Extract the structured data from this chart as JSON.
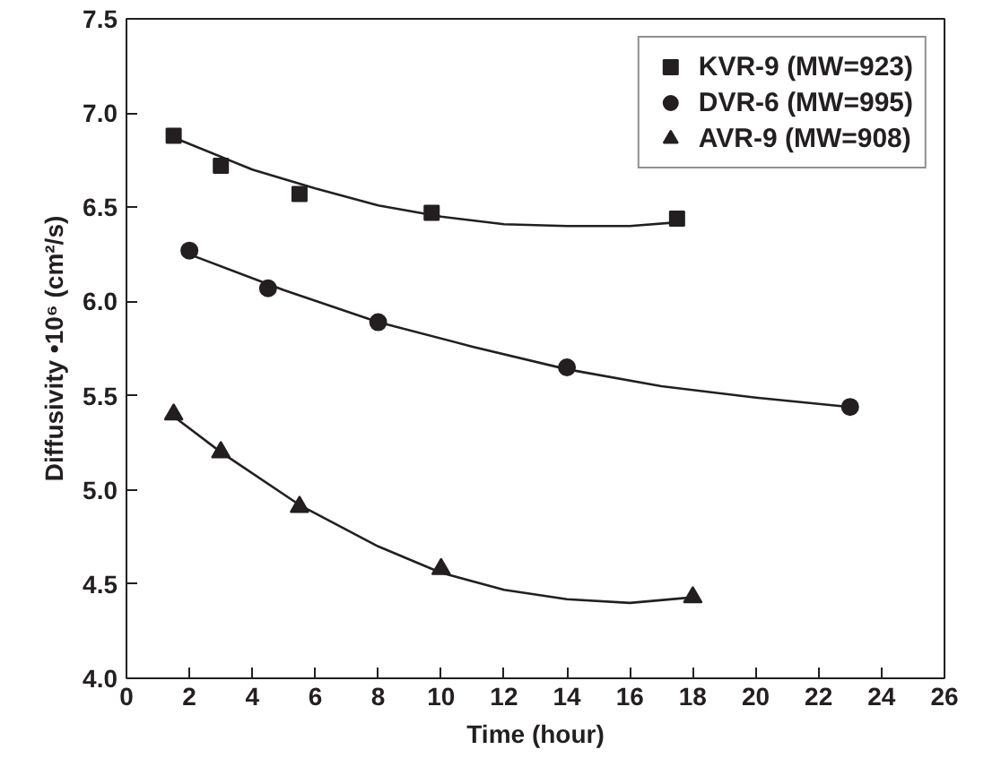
{
  "chart_data": {
    "type": "scatter",
    "xlabel": "Time (hour)",
    "ylabel": "Diffusivity •10⁶ (cm²/s)",
    "xlim": [
      0,
      26
    ],
    "xticks": [
      0,
      2,
      4,
      6,
      8,
      10,
      12,
      14,
      16,
      18,
      20,
      22,
      24,
      26
    ],
    "ylim": [
      4.0,
      7.5
    ],
    "yticks": [
      {
        "value": 4.0,
        "label": "4.0"
      },
      {
        "value": 4.5,
        "label": "4.5"
      },
      {
        "value": 5.0,
        "label": "5.0"
      },
      {
        "value": 5.5,
        "label": "5.5"
      },
      {
        "value": 6.0,
        "label": "6.0"
      },
      {
        "value": 6.5,
        "label": "6.5"
      },
      {
        "value": 7.0,
        "label": "7.0"
      },
      {
        "value": 7.5,
        "label": "7.5"
      }
    ],
    "grid": false,
    "legend": "top right",
    "series": [
      {
        "name": "KVR-9 (MW=923)",
        "marker": "square",
        "color": "#231f20",
        "x": [
          1.5,
          3,
          5.5,
          9.7,
          17.5
        ],
        "values": [
          6.88,
          6.72,
          6.57,
          6.47,
          6.44
        ]
      },
      {
        "name": "DVR-6 (MW=995)",
        "marker": "circle",
        "color": "#231f20",
        "x": [
          2,
          4.5,
          8,
          14,
          23
        ],
        "values": [
          6.27,
          6.07,
          5.89,
          5.65,
          5.44
        ]
      },
      {
        "name": "AVR-9 (MW=908)",
        "marker": "triangle",
        "color": "#231f20",
        "x": [
          1.5,
          3,
          5.5,
          10,
          18
        ],
        "values": [
          5.4,
          5.2,
          4.91,
          4.58,
          4.43
        ]
      },
      {
        "type": "line",
        "marker": "none",
        "line_style": "solid",
        "color": "#231f20",
        "x": [
          1.5,
          4,
          6,
          8,
          10,
          12,
          14,
          16,
          17.5
        ],
        "values": [
          6.87,
          6.7,
          6.6,
          6.51,
          6.45,
          6.41,
          6.4,
          6.4,
          6.42
        ]
      },
      {
        "type": "line",
        "marker": "none",
        "line_style": "solid",
        "color": "#231f20",
        "x": [
          2,
          5,
          8,
          11,
          14,
          17,
          20,
          23
        ],
        "values": [
          6.25,
          6.06,
          5.89,
          5.76,
          5.64,
          5.55,
          5.49,
          5.44
        ]
      },
      {
        "type": "line",
        "marker": "none",
        "line_style": "solid",
        "color": "#231f20",
        "x": [
          1.5,
          3,
          5.5,
          8,
          10,
          12,
          14,
          16,
          18
        ],
        "values": [
          5.39,
          5.2,
          4.92,
          4.7,
          4.56,
          4.47,
          4.42,
          4.4,
          4.43
        ]
      }
    ]
  }
}
